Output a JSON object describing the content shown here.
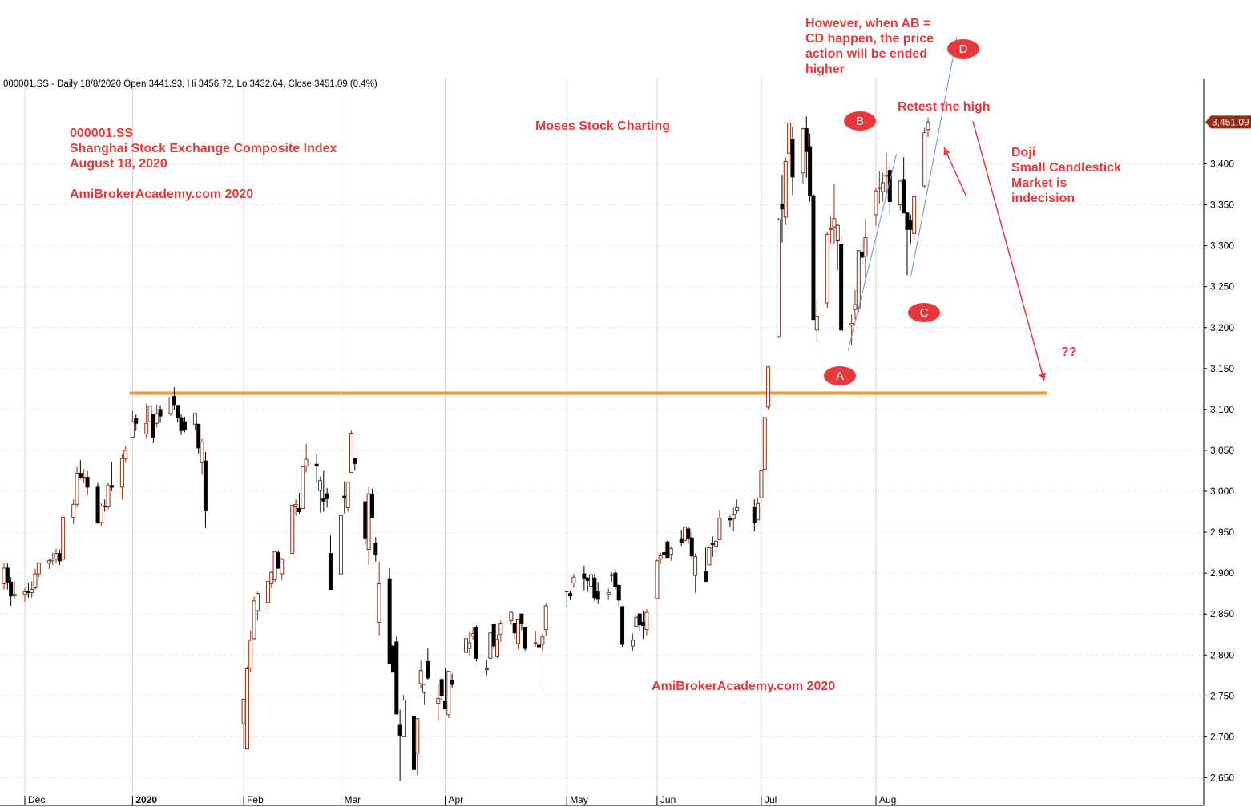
{
  "header_info": "000001.SS - Daily 18/8/2020 Open 3441.93, Hi 3456.72, Lo 3432.64, Close 3451.09 (0.4%)",
  "annotations": {
    "ticker": "000001.SS",
    "index_name": "Shanghai Stock Exchange Composite Index",
    "date": "August 18, 2020",
    "site_top": "AmiBrokerAcademy.com  2020",
    "brand": "Moses Stock Charting",
    "site_bottom": "AmiBrokerAcademy.com  2020",
    "abcd_note": [
      "However, when AB =",
      "CD happen, the price",
      "action will be ended",
      "higher"
    ],
    "retest": "Retest the high",
    "doji_note": [
      "Doji",
      "Small Candlestick",
      "Market is",
      "indecision"
    ],
    "question": "??",
    "points": [
      "A",
      "B",
      "C",
      "D"
    ]
  },
  "colors": {
    "up_candle": "#8b2e12",
    "down_candle": "#000000",
    "support_line": "#f5962a",
    "annotation": "#e8383b",
    "trend_line": "#6b8fd6",
    "price_tag": "#9b2a12"
  },
  "chart_data": {
    "type": "candlestick",
    "title": "",
    "ylim": [
      2625,
      3490
    ],
    "y_ticks": [
      2650,
      2700,
      2750,
      2800,
      2850,
      2900,
      2950,
      3000,
      3050,
      3100,
      3150,
      3200,
      3250,
      3300,
      3350,
      3400
    ],
    "y_tick_labels": [
      "2,650",
      "2,700",
      "2,750",
      "2,800",
      "2,850",
      "2,900",
      "2,950",
      "3,000",
      "3,050",
      "3,100",
      "3,150",
      "3,200",
      "3,250",
      "3,300",
      "3,350",
      "3,400"
    ],
    "last_price_label": "3,451.09",
    "last_price": 3451.09,
    "x_labels": [
      "Dec",
      "2020",
      "Feb",
      "Mar",
      "Apr",
      "May",
      "Jun",
      "Jul",
      "Aug"
    ],
    "x_label_dates": [
      "2019-12-02",
      "2020-01-02",
      "2020-02-03",
      "2020-03-02",
      "2020-04-01",
      "2020-05-06",
      "2020-06-01",
      "2020-07-01",
      "2020-08-03"
    ],
    "support_level": 3120,
    "ohlc": [
      [
        "2019-11-26",
        2887,
        2912,
        2880,
        2906
      ],
      [
        "2019-11-27",
        2906,
        2912,
        2880,
        2889
      ],
      [
        "2019-11-28",
        2889,
        2895,
        2860,
        2872
      ],
      [
        "2019-11-29",
        2872,
        2890,
        2868,
        2874
      ],
      [
        "2019-12-02",
        2874,
        2882,
        2865,
        2877
      ],
      [
        "2019-12-03",
        2877,
        2888,
        2870,
        2876
      ],
      [
        "2019-12-04",
        2876,
        2890,
        2870,
        2880
      ],
      [
        "2019-12-05",
        2882,
        2905,
        2880,
        2899
      ],
      [
        "2019-12-06",
        2899,
        2913,
        2895,
        2912
      ],
      [
        "2019-12-09",
        2912,
        2918,
        2905,
        2915
      ],
      [
        "2019-12-10",
        2915,
        2925,
        2910,
        2917
      ],
      [
        "2019-12-11",
        2917,
        2930,
        2912,
        2924
      ],
      [
        "2019-12-12",
        2924,
        2929,
        2910,
        2915
      ],
      [
        "2019-12-13",
        2917,
        2970,
        2915,
        2968
      ],
      [
        "2019-12-16",
        2968,
        2990,
        2960,
        2984
      ],
      [
        "2019-12-17",
        2984,
        3030,
        2980,
        3022
      ],
      [
        "2019-12-18",
        3022,
        3038,
        3015,
        3017
      ],
      [
        "2019-12-19",
        3017,
        3027,
        3010,
        3017
      ],
      [
        "2019-12-20",
        3017,
        3025,
        2995,
        3005
      ],
      [
        "2019-12-23",
        3005,
        3010,
        2960,
        2962
      ],
      [
        "2019-12-24",
        2962,
        2985,
        2958,
        2982
      ],
      [
        "2019-12-25",
        2982,
        2990,
        2975,
        2981
      ],
      [
        "2019-12-26",
        2981,
        3010,
        2978,
        3007
      ],
      [
        "2019-12-27",
        3007,
        3036,
        3000,
        3005
      ],
      [
        "2019-12-30",
        3005,
        3045,
        2990,
        3040
      ],
      [
        "2019-12-31",
        3040,
        3055,
        3035,
        3050
      ],
      [
        "2020-01-02",
        3066,
        3098,
        3066,
        3085
      ],
      [
        "2020-01-03",
        3089,
        3094,
        3074,
        3083
      ],
      [
        "2020-01-06",
        3070,
        3107,
        3065,
        3083
      ],
      [
        "2020-01-07",
        3085,
        3105,
        3085,
        3104
      ],
      [
        "2020-01-08",
        3094,
        3094,
        3059,
        3066
      ],
      [
        "2020-01-09",
        3083,
        3106,
        3078,
        3095
      ],
      [
        "2020-01-10",
        3100,
        3105,
        3084,
        3092
      ],
      [
        "2020-01-13",
        3095,
        3115,
        3092,
        3115
      ],
      [
        "2020-01-14",
        3116,
        3127,
        3100,
        3106
      ],
      [
        "2020-01-15",
        3105,
        3105,
        3084,
        3090
      ],
      [
        "2020-01-16",
        3090,
        3094,
        3069,
        3074
      ],
      [
        "2020-01-17",
        3085,
        3091,
        3072,
        3075
      ],
      [
        "2020-01-20",
        3082,
        3096,
        3075,
        3095
      ],
      [
        "2020-01-21",
        3082,
        3082,
        3046,
        3053
      ],
      [
        "2020-01-22",
        3035,
        3064,
        3020,
        3060
      ],
      [
        "2020-01-23",
        3037,
        3048,
        2955,
        2976
      ],
      [
        "2020-02-03",
        2716,
        2746,
        2685,
        2746
      ],
      [
        "2020-02-04",
        2685,
        2786,
        2685,
        2783
      ],
      [
        "2020-02-05",
        2784,
        2830,
        2779,
        2818
      ],
      [
        "2020-02-06",
        2820,
        2871,
        2818,
        2866
      ],
      [
        "2020-02-07",
        2854,
        2877,
        2842,
        2875
      ],
      [
        "2020-02-10",
        2864,
        2890,
        2855,
        2890
      ],
      [
        "2020-02-11",
        2887,
        2902,
        2882,
        2901
      ],
      [
        "2020-02-12",
        2892,
        2926,
        2889,
        2926
      ],
      [
        "2020-02-13",
        2925,
        2928,
        2905,
        2906
      ],
      [
        "2020-02-14",
        2899,
        2919,
        2891,
        2917
      ],
      [
        "2020-02-17",
        2924,
        2983,
        2924,
        2983
      ],
      [
        "2020-02-18",
        2981,
        2990,
        2970,
        2984
      ],
      [
        "2020-02-19",
        2979,
        2998,
        2972,
        2975
      ],
      [
        "2020-02-20",
        2979,
        3031,
        2979,
        3030
      ],
      [
        "2020-02-21",
        3031,
        3058,
        3023,
        3039
      ],
      [
        "2020-02-24",
        3033,
        3046,
        3010,
        3031
      ],
      [
        "2020-02-25",
        3001,
        3018,
        2974,
        3013
      ],
      [
        "2020-02-26",
        2991,
        3025,
        2975,
        2988
      ],
      [
        "2020-02-27",
        2997,
        3004,
        2980,
        2991
      ],
      [
        "2020-02-28",
        2924,
        2946,
        2880,
        2880
      ],
      [
        "2020-03-02",
        2899,
        2970,
        2899,
        2970
      ],
      [
        "2020-03-03",
        2994,
        3012,
        2973,
        2992
      ],
      [
        "2020-03-04",
        2980,
        3012,
        2975,
        3011
      ],
      [
        "2020-03-05",
        3023,
        3074,
        3023,
        3071
      ],
      [
        "2020-03-06",
        3040,
        3040,
        3025,
        3034
      ],
      [
        "2020-03-09",
        2987,
        2988,
        2935,
        2943
      ],
      [
        "2020-03-10",
        2929,
        3005,
        2910,
        2997
      ],
      [
        "2020-03-11",
        2996,
        3003,
        2967,
        2968
      ],
      [
        "2020-03-12",
        2936,
        2944,
        2914,
        2923
      ],
      [
        "2020-03-13",
        2840,
        2914,
        2824,
        2887
      ],
      [
        "2020-03-16",
        2893,
        2906,
        2789,
        2789
      ],
      [
        "2020-03-17",
        2811,
        2822,
        2731,
        2779
      ],
      [
        "2020-03-18",
        2816,
        2823,
        2727,
        2728
      ],
      [
        "2020-03-19",
        2714,
        2733,
        2646,
        2702
      ],
      [
        "2020-03-20",
        2700,
        2751,
        2700,
        2745
      ],
      [
        "2020-03-23",
        2725,
        2725,
        2660,
        2660
      ],
      [
        "2020-03-24",
        2680,
        2723,
        2653,
        2722
      ],
      [
        "2020-03-25",
        2765,
        2793,
        2759,
        2781
      ],
      [
        "2020-03-26",
        2754,
        2765,
        2739,
        2764
      ],
      [
        "2020-03-27",
        2792,
        2808,
        2769,
        2772
      ],
      [
        "2020-03-30",
        2741,
        2765,
        2720,
        2747
      ],
      [
        "2020-03-31",
        2770,
        2772,
        2745,
        2750
      ],
      [
        "2020-04-01",
        2743,
        2784,
        2734,
        2734
      ],
      [
        "2020-04-02",
        2727,
        2780,
        2723,
        2780
      ],
      [
        "2020-04-03",
        2769,
        2777,
        2760,
        2764
      ],
      [
        "2020-04-07",
        2803,
        2821,
        2803,
        2820
      ],
      [
        "2020-04-08",
        2808,
        2828,
        2800,
        2815
      ],
      [
        "2020-04-09",
        2823,
        2834,
        2818,
        2826
      ],
      [
        "2020-04-10",
        2833,
        2836,
        2792,
        2796
      ],
      [
        "2020-04-13",
        2782,
        2794,
        2775,
        2783
      ],
      [
        "2020-04-14",
        2796,
        2828,
        2795,
        2827
      ],
      [
        "2020-04-15",
        2837,
        2837,
        2807,
        2811
      ],
      [
        "2020-04-16",
        2798,
        2825,
        2796,
        2819
      ],
      [
        "2020-04-17",
        2825,
        2842,
        2816,
        2838
      ],
      [
        "2020-04-20",
        2842,
        2853,
        2837,
        2852
      ],
      [
        "2020-04-21",
        2838,
        2838,
        2820,
        2827
      ],
      [
        "2020-04-22",
        2814,
        2844,
        2807,
        2843
      ],
      [
        "2020-04-23",
        2850,
        2850,
        2830,
        2838
      ],
      [
        "2020-04-24",
        2833,
        2833,
        2805,
        2808
      ],
      [
        "2020-04-27",
        2815,
        2829,
        2810,
        2815
      ],
      [
        "2020-04-28",
        2812,
        2814,
        2759,
        2810
      ],
      [
        "2020-04-29",
        2813,
        2826,
        2805,
        2822
      ],
      [
        "2020-04-30",
        2831,
        2863,
        2823,
        2860
      ],
      [
        "2020-05-06",
        2878,
        2879,
        2859,
        2878
      ],
      [
        "2020-05-07",
        2875,
        2878,
        2867,
        2872
      ],
      [
        "2020-05-08",
        2888,
        2899,
        2882,
        2895
      ],
      [
        "2020-05-11",
        2899,
        2909,
        2879,
        2894
      ],
      [
        "2020-05-12",
        2894,
        2895,
        2877,
        2891
      ],
      [
        "2020-05-13",
        2884,
        2899,
        2875,
        2898
      ],
      [
        "2020-05-14",
        2894,
        2899,
        2866,
        2870
      ],
      [
        "2020-05-15",
        2877,
        2889,
        2862,
        2868
      ],
      [
        "2020-05-18",
        2874,
        2881,
        2867,
        2876
      ],
      [
        "2020-05-19",
        2897,
        2901,
        2889,
        2898
      ],
      [
        "2020-05-20",
        2900,
        2904,
        2880,
        2883
      ],
      [
        "2020-05-21",
        2885,
        2886,
        2858,
        2867
      ],
      [
        "2020-05-22",
        2859,
        2860,
        2810,
        2813
      ],
      [
        "2020-05-25",
        2811,
        2826,
        2805,
        2818
      ],
      [
        "2020-05-26",
        2835,
        2848,
        2835,
        2846
      ],
      [
        "2020-05-27",
        2850,
        2851,
        2829,
        2837
      ],
      [
        "2020-05-28",
        2840,
        2854,
        2820,
        2836
      ],
      [
        "2020-05-29",
        2831,
        2856,
        2824,
        2852
      ],
      [
        "2020-06-01",
        2869,
        2917,
        2868,
        2915
      ],
      [
        "2020-06-02",
        2917,
        2925,
        2911,
        2921
      ],
      [
        "2020-06-03",
        2925,
        2938,
        2917,
        2923
      ],
      [
        "2020-06-04",
        2938,
        2940,
        2921,
        2919
      ],
      [
        "2020-06-05",
        2923,
        2933,
        2915,
        2930
      ],
      [
        "2020-06-08",
        2942,
        2953,
        2933,
        2937
      ],
      [
        "2020-06-09",
        2940,
        2957,
        2939,
        2956
      ],
      [
        "2020-06-10",
        2954,
        2957,
        2936,
        2943
      ],
      [
        "2020-06-11",
        2943,
        2950,
        2917,
        2921
      ],
      [
        "2020-06-12",
        2897,
        2924,
        2876,
        2920
      ],
      [
        "2020-06-15",
        2902,
        2931,
        2889,
        2890
      ],
      [
        "2020-06-16",
        2910,
        2933,
        2910,
        2931
      ],
      [
        "2020-06-17",
        2936,
        2945,
        2920,
        2935
      ],
      [
        "2020-06-18",
        2933,
        2942,
        2923,
        2939
      ],
      [
        "2020-06-19",
        2941,
        2977,
        2940,
        2967
      ],
      [
        "2020-06-22",
        2967,
        2970,
        2956,
        2965
      ],
      [
        "2020-06-23",
        2966,
        2980,
        2951,
        2971
      ],
      [
        "2020-06-24",
        2976,
        2990,
        2972,
        2980
      ],
      [
        "2020-06-29",
        2980,
        2990,
        2951,
        2962
      ],
      [
        "2020-06-30",
        2965,
        2992,
        2965,
        2985
      ],
      [
        "2020-07-01",
        2992,
        3026,
        2992,
        3025
      ],
      [
        "2020-07-02",
        3027,
        3091,
        3025,
        3090
      ],
      [
        "2020-07-03",
        3103,
        3153,
        3100,
        3152
      ],
      [
        "2020-07-06",
        3189,
        3334,
        3187,
        3332
      ],
      [
        "2020-07-07",
        3351,
        3387,
        3304,
        3345
      ],
      [
        "2020-07-08",
        3335,
        3408,
        3325,
        3403
      ],
      [
        "2020-07-09",
        3413,
        3456,
        3400,
        3450
      ],
      [
        "2020-07-10",
        3430,
        3445,
        3362,
        3384
      ],
      [
        "2020-07-13",
        3389,
        3444,
        3376,
        3443
      ],
      [
        "2020-07-14",
        3443,
        3458,
        3383,
        3415
      ],
      [
        "2020-07-15",
        3421,
        3437,
        3354,
        3361
      ],
      [
        "2020-07-16",
        3361,
        3363,
        3209,
        3210
      ],
      [
        "2020-07-17",
        3197,
        3234,
        3182,
        3214
      ],
      [
        "2020-07-20",
        3230,
        3317,
        3224,
        3314
      ],
      [
        "2020-07-21",
        3320,
        3335,
        3303,
        3321
      ],
      [
        "2020-07-22",
        3323,
        3376,
        3302,
        3333
      ],
      [
        "2020-07-23",
        3306,
        3327,
        3270,
        3325
      ],
      [
        "2020-07-24",
        3302,
        3312,
        3195,
        3197
      ],
      [
        "2020-07-27",
        3203,
        3216,
        3178,
        3205
      ],
      [
        "2020-07-28",
        3222,
        3246,
        3210,
        3228
      ],
      [
        "2020-07-29",
        3224,
        3294,
        3219,
        3294
      ],
      [
        "2020-07-30",
        3292,
        3306,
        3278,
        3286
      ],
      [
        "2020-07-31",
        3287,
        3333,
        3260,
        3310
      ],
      [
        "2020-08-03",
        3338,
        3371,
        3325,
        3367
      ],
      [
        "2020-08-04",
        3370,
        3391,
        3351,
        3371
      ],
      [
        "2020-08-05",
        3366,
        3389,
        3354,
        3377
      ],
      [
        "2020-08-06",
        3386,
        3413,
        3358,
        3386
      ],
      [
        "2020-08-07",
        3392,
        3398,
        3339,
        3354
      ],
      [
        "2020-08-10",
        3350,
        3380,
        3343,
        3379
      ],
      [
        "2020-08-11",
        3381,
        3408,
        3340,
        3340
      ],
      [
        "2020-08-12",
        3340,
        3341,
        3264,
        3320
      ],
      [
        "2020-08-13",
        3331,
        3338,
        3303,
        3320
      ],
      [
        "2020-08-14",
        3315,
        3362,
        3307,
        3360
      ],
      [
        "2020-08-17",
        3373,
        3444,
        3371,
        3438
      ],
      [
        "2020-08-18",
        3441.93,
        3456.72,
        3432.64,
        3451.09
      ]
    ]
  }
}
